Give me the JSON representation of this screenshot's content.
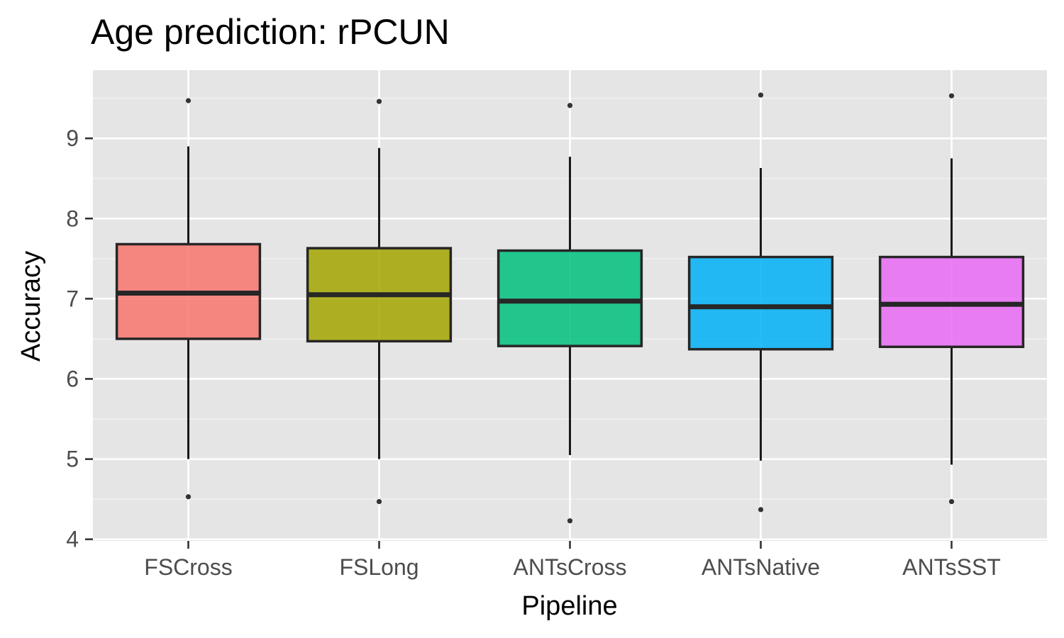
{
  "chart_data": {
    "type": "box",
    "title": "Age prediction: rPCUN",
    "xlabel": "Pipeline",
    "ylabel": "Accuracy",
    "ylim": [
      3.98,
      9.85
    ],
    "yticks": [
      4,
      5,
      6,
      7,
      8,
      9
    ],
    "grid": true,
    "legend": "none",
    "categories": [
      "FSCross",
      "FSLong",
      "ANTsCross",
      "ANTsNative",
      "ANTsSST"
    ],
    "colors": [
      "#F8766D",
      "#A3A500",
      "#00BF7D",
      "#00B0F6",
      "#E76BF3"
    ],
    "boxes": [
      {
        "category": "FSCross",
        "whisker_low": 5.0,
        "q1": 6.5,
        "median": 7.07,
        "q3": 7.68,
        "whisker_high": 8.9,
        "outliers": [
          4.53,
          9.47
        ]
      },
      {
        "category": "FSLong",
        "whisker_low": 5.0,
        "q1": 6.47,
        "median": 7.05,
        "q3": 7.63,
        "whisker_high": 8.88,
        "outliers": [
          4.47,
          9.46
        ]
      },
      {
        "category": "ANTsCross",
        "whisker_low": 5.05,
        "q1": 6.41,
        "median": 6.97,
        "q3": 7.6,
        "whisker_high": 8.77,
        "outliers": [
          4.23,
          9.41
        ]
      },
      {
        "category": "ANTsNative",
        "whisker_low": 4.98,
        "q1": 6.37,
        "median": 6.9,
        "q3": 7.52,
        "whisker_high": 8.63,
        "outliers": [
          4.37,
          9.54
        ]
      },
      {
        "category": "ANTsSST",
        "whisker_low": 4.93,
        "q1": 6.4,
        "median": 6.93,
        "q3": 7.52,
        "whisker_high": 8.75,
        "outliers": [
          4.47,
          9.53
        ]
      }
    ]
  }
}
